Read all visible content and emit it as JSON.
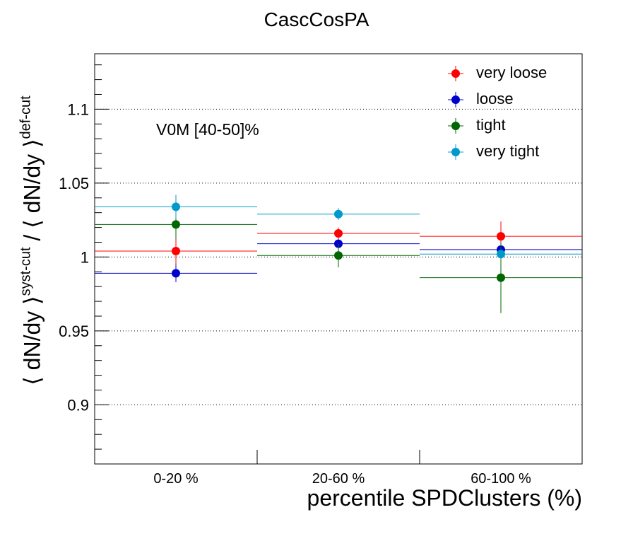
{
  "title": "CascCosPA",
  "annotation": "V0M [40-50]%",
  "chart_data": {
    "type": "scatter",
    "title": "CascCosPA",
    "xlabel": "percentile SPDClusters (%)",
    "ylabel": {
      "open_left": "⟨ dN/dy ⟩",
      "sup_left": "syst-cut",
      "slash": " / ",
      "open_right": "⟨ dN/dy ⟩",
      "sup_right": "def-cut"
    },
    "categories": [
      "0-20 %",
      "20-60 %",
      "60-100 %"
    ],
    "ylim": [
      0.86,
      1.1375
    ],
    "yticks": [
      0.9,
      0.95,
      1,
      1.05,
      1.1
    ],
    "ytick_labels": [
      "0.9",
      "0.95",
      "1",
      "1.05",
      "1.1"
    ],
    "grid": "y-dotted",
    "legend_position": "top-right",
    "series": [
      {
        "name": "very loose",
        "color": "#ff0000",
        "values": [
          1.004,
          1.016,
          1.014
        ],
        "errors": [
          0.009,
          0.004,
          0.01
        ]
      },
      {
        "name": "loose",
        "color": "#0000cc",
        "values": [
          0.989,
          1.009,
          1.005
        ],
        "errors": [
          0.006,
          0.003,
          0.003
        ]
      },
      {
        "name": "tight",
        "color": "#006600",
        "values": [
          1.022,
          1.001,
          0.986
        ],
        "errors": [
          0.01,
          0.008,
          0.024
        ]
      },
      {
        "name": "very tight",
        "color": "#0099cc",
        "values": [
          1.034,
          1.029,
          1.002
        ],
        "errors": [
          0.008,
          0.004,
          0.003
        ]
      }
    ]
  }
}
